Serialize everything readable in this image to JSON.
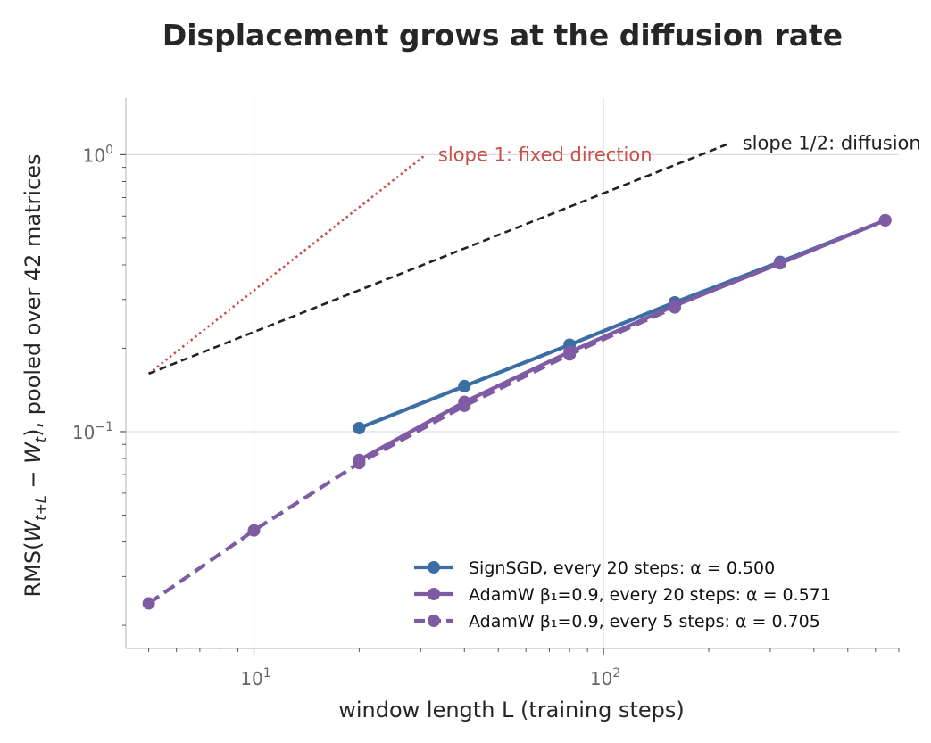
{
  "chart_data": {
    "type": "line",
    "title": "Displacement grows at the diffusion rate",
    "xlabel": "window length L (training steps)",
    "ylabel": "RMS(W_{t+L} − W_t), pooled over 42 matrices",
    "ylabel_parts": {
      "pre": "RMS(",
      "w1": "W",
      "s1": "t+L",
      "minus": " − ",
      "w2": "W",
      "s2": "t",
      "post": "), pooled over 42 matrices"
    },
    "x_scale": "log",
    "y_scale": "log",
    "xlim": [
      4.3,
      700
    ],
    "ylim": [
      0.0165,
      1.6
    ],
    "grid": true,
    "legend_position": "lower-right",
    "x_ticks": [
      {
        "value": 10,
        "base": "10",
        "exp": "1"
      },
      {
        "value": 100,
        "base": "10",
        "exp": "2"
      }
    ],
    "y_ticks": [
      {
        "value": 0.1,
        "base": "10",
        "exp": "−1"
      },
      {
        "value": 1,
        "base": "10",
        "exp": "0"
      }
    ],
    "series": [
      {
        "name": "SignSGD, every 20 steps: α = 0.500",
        "color": "#3b6ea5",
        "dash": "solid",
        "x": [
          20,
          40,
          80,
          160,
          320,
          640
        ],
        "y": [
          0.103,
          0.146,
          0.206,
          0.293,
          0.41,
          0.58
        ]
      },
      {
        "name": "AdamW β₁=0.9, every 20 steps: α = 0.571",
        "color": "#7f5ba3",
        "dash": "solid",
        "x": [
          20,
          40,
          80,
          160,
          320,
          640
        ],
        "y": [
          0.079,
          0.128,
          0.194,
          0.285,
          0.405,
          0.58
        ]
      },
      {
        "name": "AdamW β₁=0.9, every 5 steps: α = 0.705",
        "color": "#7f5ba3",
        "dash": "dashed",
        "x": [
          5,
          10,
          20,
          40,
          80,
          160
        ],
        "y": [
          0.024,
          0.044,
          0.077,
          0.124,
          0.19,
          0.281
        ]
      }
    ],
    "reference_lines": [
      {
        "label": "slope 1: fixed direction",
        "color": "#c8504a",
        "dash": "dotted",
        "x": [
          5,
          31
        ],
        "y": [
          0.162,
          1.0
        ]
      },
      {
        "label": "slope 1/2: diffusion",
        "color": "#222222",
        "dash": "dashed",
        "x": [
          5,
          230
        ],
        "y": [
          0.162,
          1.1
        ]
      }
    ]
  }
}
